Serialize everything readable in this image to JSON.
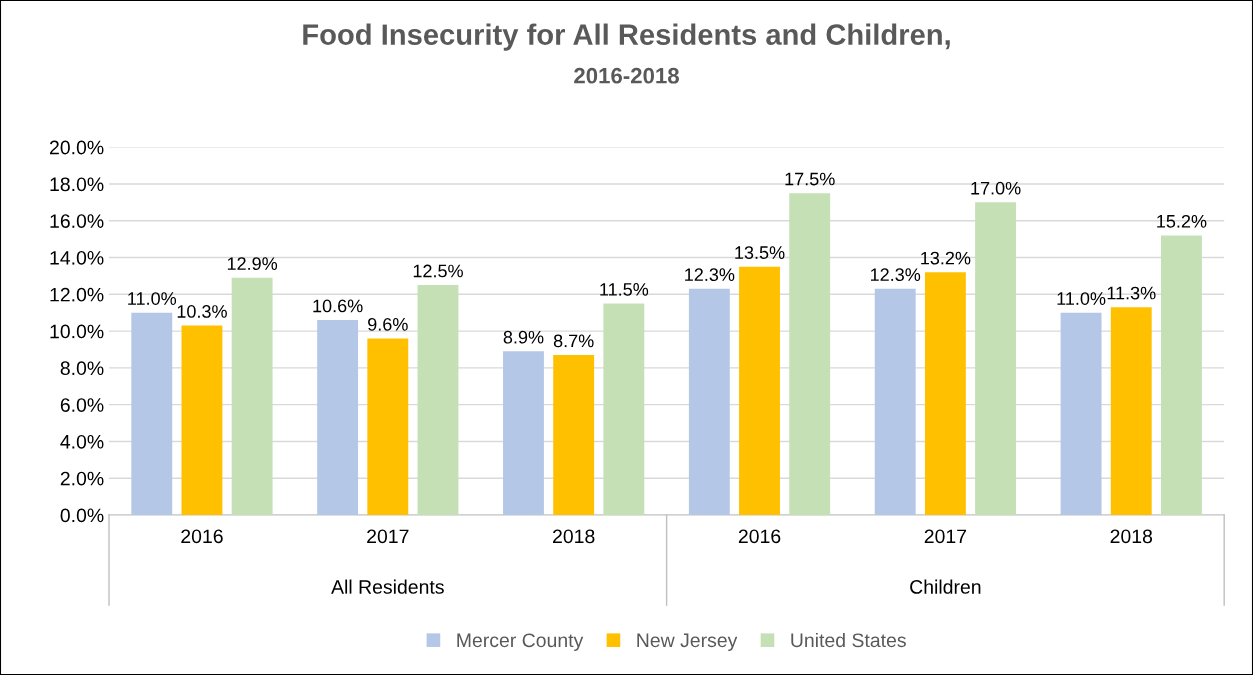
{
  "chart_data": {
    "type": "bar",
    "title": "Food Insecurity for All Residents and Children,",
    "subtitle": "2016-2018",
    "categories": [
      "2016",
      "2017",
      "2018",
      "2016",
      "2017",
      "2018"
    ],
    "annotations": [
      "All Residents",
      "Children"
    ],
    "series": [
      {
        "name": "Mercer County",
        "color": "#b4c7e7",
        "values": [
          11.0,
          10.6,
          8.9,
          12.3,
          12.3,
          11.0
        ],
        "value_labels": [
          "11.0%",
          "10.6%",
          "8.9%",
          "12.3%",
          "12.3%",
          "11.0%"
        ]
      },
      {
        "name": "New Jersey",
        "color": "#ffc000",
        "values": [
          10.3,
          9.6,
          8.7,
          13.5,
          13.2,
          11.3
        ],
        "value_labels": [
          "10.3%",
          "9.6%",
          "8.7%",
          "13.5%",
          "13.2%",
          "11.3%"
        ]
      },
      {
        "name": "United States",
        "color": "#c5e0b4",
        "values": [
          12.9,
          12.5,
          11.5,
          17.5,
          17.0,
          15.2
        ],
        "value_labels": [
          "12.9%",
          "12.5%",
          "11.5%",
          "17.5%",
          "17.0%",
          "15.2%"
        ]
      }
    ],
    "ylim": [
      0,
      20
    ],
    "yticks": [
      {
        "value": 0,
        "label": "0.0%"
      },
      {
        "value": 2,
        "label": "2.0%"
      },
      {
        "value": 4,
        "label": "4.0%"
      },
      {
        "value": 6,
        "label": "6.0%"
      },
      {
        "value": 8,
        "label": "8.0%"
      },
      {
        "value": 10,
        "label": "10.0%"
      },
      {
        "value": 12,
        "label": "12.0%"
      },
      {
        "value": 14,
        "label": "14.0%"
      },
      {
        "value": 16,
        "label": "16.0%"
      },
      {
        "value": 18,
        "label": "18.0%"
      },
      {
        "value": 20,
        "label": "20.0%"
      }
    ],
    "grid": "y",
    "legend": "bottom"
  }
}
